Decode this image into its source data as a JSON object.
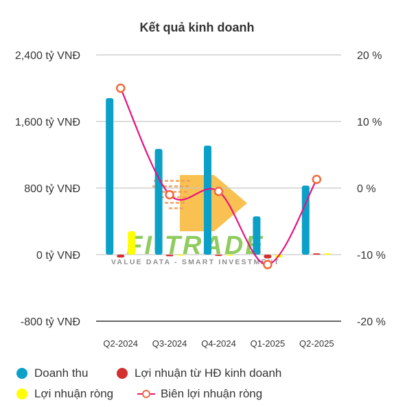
{
  "chart_data": {
    "type": "bar",
    "title": "Kết quả kinh doanh",
    "categories": [
      "Q2-2024",
      "Q3-2024",
      "Q4-2024",
      "Q1-2025",
      "Q2-2025"
    ],
    "y_left": {
      "range": [
        -800,
        2400
      ],
      "ticks": [
        -800,
        0,
        800,
        1600,
        2400
      ],
      "tick_labels": [
        "-800 tỷ VNĐ",
        "0 tỷ VNĐ",
        "800 tỷ VNĐ",
        "1,600 tỷ VNĐ",
        "2,400 tỷ VNĐ"
      ]
    },
    "y_right": {
      "range": [
        -20,
        20
      ],
      "ticks": [
        -20,
        -10,
        0,
        10,
        20
      ],
      "tick_labels": [
        "-20 %",
        "-10 %",
        "0 %",
        "10 %",
        "20 %"
      ]
    },
    "series": [
      {
        "name": "Doanh thu",
        "type": "bar",
        "axis": "left",
        "color": "#0aa0c8",
        "values": [
          1880,
          1270,
          1310,
          460,
          830
        ]
      },
      {
        "name": "Lợi nhuận từ HĐ kinh doanh",
        "type": "bar",
        "axis": "left",
        "color": "#d32f2f",
        "values": [
          -35,
          -20,
          -15,
          -45,
          15
        ]
      },
      {
        "name": "Lợi nhuận ròng",
        "type": "bar",
        "axis": "left",
        "color": "#ffff00",
        "values": [
          280,
          -10,
          -8,
          -35,
          15
        ]
      },
      {
        "name": "Biên lợi nhuận ròng",
        "type": "line",
        "axis": "right",
        "color": "#e8117d",
        "marker_color": "#f06a3c",
        "values": [
          15,
          -1,
          -0.5,
          -11.5,
          1.3
        ]
      }
    ],
    "grid": true,
    "legend_position": "bottom"
  },
  "watermark": {
    "brand": "FI-TRADE",
    "tagline": "VALUE DATA - SMART INVESTMENT"
  }
}
